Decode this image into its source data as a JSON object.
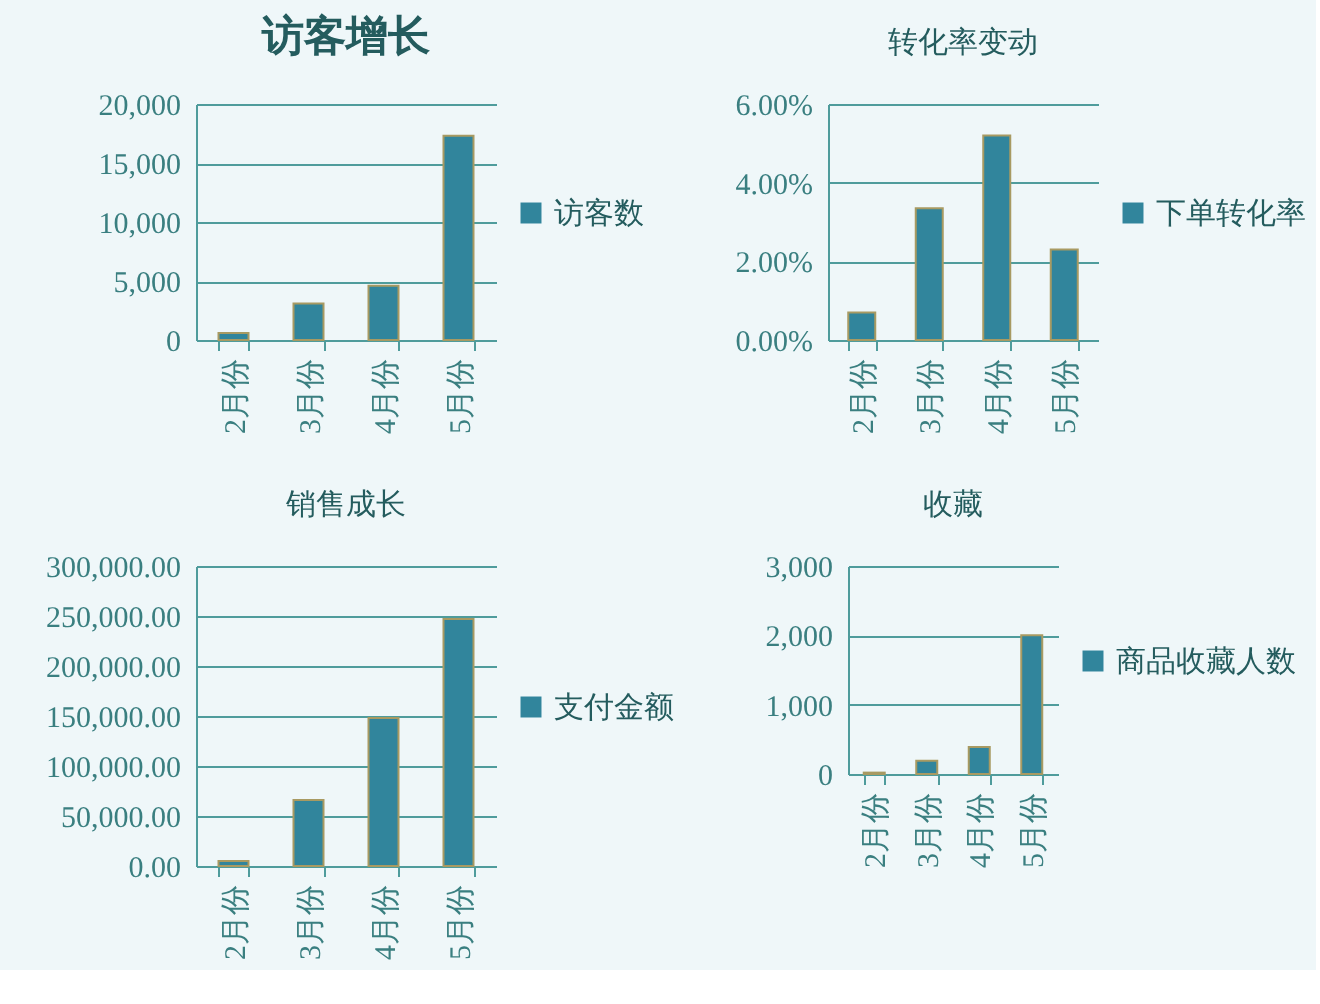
{
  "chart_data": [
    {
      "type": "bar",
      "title": "访客增长",
      "categories": [
        "2月份",
        "3月份",
        "4月份",
        "5月份"
      ],
      "series": [
        {
          "name": "访客数",
          "color": "#31859c",
          "values": [
            600,
            3100,
            4600,
            17300
          ]
        }
      ],
      "ylim": [
        0,
        20000
      ],
      "yticks": [
        0,
        {
          "value": 5000,
          "label": "5,000"
        },
        {
          "value": 10000,
          "label": "10,000"
        },
        {
          "value": 15000,
          "label": "15,000"
        },
        {
          "value": 20000,
          "label": "20,000"
        }
      ],
      "grid": "y",
      "legend": "right"
    },
    {
      "type": "bar",
      "title": "转化率变动",
      "categories": [
        "2月份",
        "3月份",
        "4月份",
        "5月份"
      ],
      "series": [
        {
          "name": "下单转化率",
          "color": "#31859c",
          "values": [
            0.7,
            3.35,
            5.2,
            2.3
          ]
        }
      ],
      "ylim": [
        0,
        6
      ],
      "yticks": [
        {
          "value": 0,
          "label": "0.00%"
        },
        {
          "value": 2,
          "label": "2.00%"
        },
        {
          "value": 4,
          "label": "4.00%"
        },
        {
          "value": 6,
          "label": "6.00%"
        }
      ],
      "grid": "y",
      "legend": "right"
    },
    {
      "type": "bar",
      "title": "销售成长",
      "categories": [
        "2月份",
        "3月份",
        "4月份",
        "5月份"
      ],
      "series": [
        {
          "name": "支付金额",
          "color": "#31859c",
          "values": [
            5000,
            66000,
            148000,
            247000
          ]
        }
      ],
      "ylim": [
        0,
        300000
      ],
      "yticks": [
        {
          "value": 0,
          "label": "0.00"
        },
        {
          "value": 50000,
          "label": "50,000.00"
        },
        {
          "value": 100000,
          "label": "100,000.00"
        },
        {
          "value": 150000,
          "label": "150,000.00"
        },
        {
          "value": 200000,
          "label": "200,000.00"
        },
        {
          "value": 250000,
          "label": "250,000.00"
        },
        {
          "value": 300000,
          "label": "300,000.00"
        }
      ],
      "grid": "y",
      "legend": "right"
    },
    {
      "type": "bar",
      "title": "收藏",
      "categories": [
        "2月份",
        "3月份",
        "4月份",
        "5月份"
      ],
      "series": [
        {
          "name": "商品收藏人数",
          "color": "#31859c",
          "values": [
            20,
            190,
            390,
            2000
          ]
        }
      ],
      "ylim": [
        0,
        3000
      ],
      "yticks": [
        0,
        {
          "value": 1000,
          "label": "1,000"
        },
        {
          "value": 2000,
          "label": "2,000"
        },
        {
          "value": 3000,
          "label": "3,000"
        }
      ],
      "grid": "y",
      "legend": "right"
    }
  ]
}
